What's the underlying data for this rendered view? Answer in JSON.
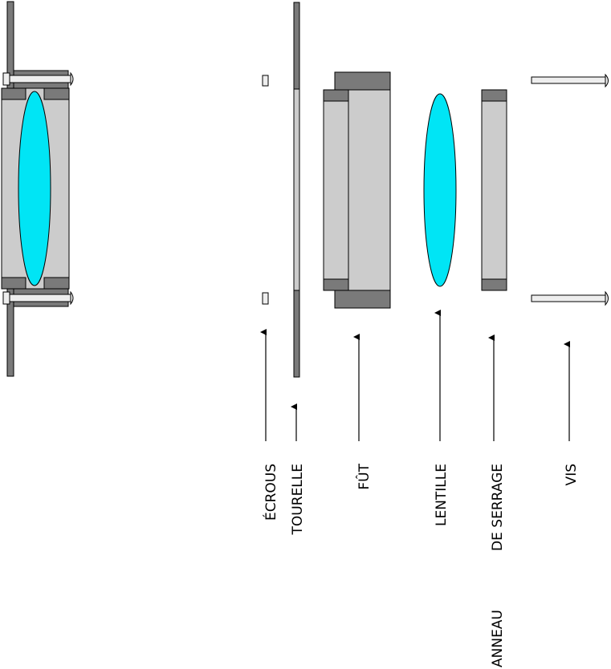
{
  "labels": {
    "ecrous": "ÉCROUS",
    "tourelle": "TOURELLE",
    "fut": "FÛT",
    "lentille": "LENTILLE",
    "anneau_line1": "ANNEAU",
    "anneau_line2": "DE SERRAGE",
    "vis": "VIS"
  },
  "colors": {
    "dark_gray": "#7a7a7a",
    "light_gray": "#cccccc",
    "screw_fill": "#eeeeee",
    "lens": "#00e5f5",
    "outline": "#000000"
  }
}
